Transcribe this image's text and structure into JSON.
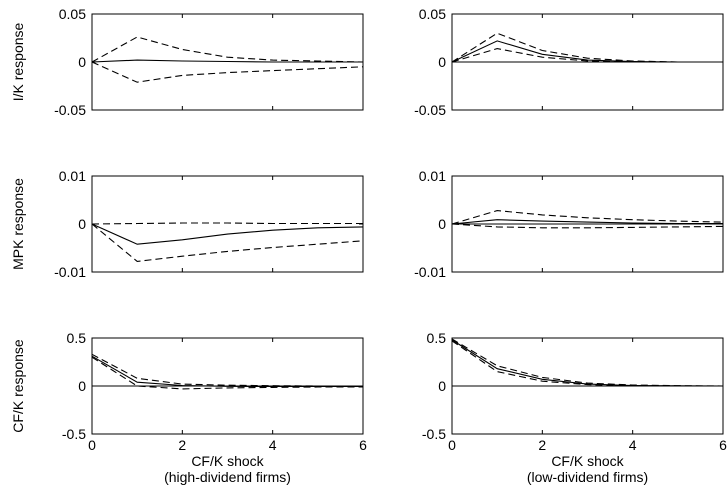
{
  "chart_data": [
    {
      "type": "line",
      "ylabel": "I/K response",
      "xlabel": "",
      "xlabel2": "",
      "xlim": [
        0,
        6
      ],
      "ylim": [
        -0.05,
        0.05
      ],
      "y_ticks": [
        "0.05",
        "0",
        "-0.05"
      ],
      "x_ticks": [],
      "zero_line": false,
      "series": [
        {
          "style": "solid",
          "x": [
            0,
            1,
            2,
            3,
            4,
            5,
            6
          ],
          "y": [
            0,
            0.002,
            0.001,
            0.0005,
            0,
            0,
            0
          ]
        },
        {
          "style": "dashed",
          "x": [
            0,
            1,
            2,
            3,
            4,
            5,
            6
          ],
          "y": [
            0,
            0.026,
            0.013,
            0.005,
            0.002,
            0.001,
            0
          ]
        },
        {
          "style": "dashed",
          "x": [
            0,
            1,
            2,
            3,
            4,
            5,
            6
          ],
          "y": [
            0,
            -0.021,
            -0.014,
            -0.011,
            -0.009,
            -0.007,
            -0.005
          ]
        }
      ]
    },
    {
      "type": "line",
      "ylabel": "",
      "xlabel": "",
      "xlabel2": "",
      "xlim": [
        0,
        6
      ],
      "ylim": [
        -0.05,
        0.05
      ],
      "y_ticks": [
        "0.05",
        "0",
        "-0.05"
      ],
      "x_ticks": [],
      "zero_line": true,
      "series": [
        {
          "style": "solid",
          "x": [
            0,
            1,
            2,
            3,
            4,
            5,
            6
          ],
          "y": [
            0,
            0.022,
            0.008,
            0.002,
            0.0005,
            0,
            0
          ]
        },
        {
          "style": "dashed",
          "x": [
            0,
            1,
            2,
            3,
            4,
            5,
            6
          ],
          "y": [
            0,
            0.03,
            0.012,
            0.004,
            0.001,
            0,
            0
          ]
        },
        {
          "style": "dashed",
          "x": [
            0,
            1,
            2,
            3,
            4,
            5,
            6
          ],
          "y": [
            0,
            0.014,
            0.005,
            0.001,
            0,
            0,
            0
          ]
        }
      ]
    },
    {
      "type": "line",
      "ylabel": "MPK response",
      "xlabel": "",
      "xlabel2": "",
      "xlim": [
        0,
        6
      ],
      "ylim": [
        -0.01,
        0.01
      ],
      "y_ticks": [
        "0.01",
        "0",
        "-0.01"
      ],
      "x_ticks": [],
      "zero_line": false,
      "series": [
        {
          "style": "solid",
          "x": [
            0,
            1,
            2,
            3,
            4,
            5,
            6
          ],
          "y": [
            0,
            -0.0042,
            -0.0033,
            -0.0021,
            -0.0013,
            -0.0008,
            -0.0006
          ]
        },
        {
          "style": "dashed",
          "x": [
            0,
            1,
            2,
            3,
            4,
            5,
            6
          ],
          "y": [
            0,
            -0.0078,
            -0.0067,
            -0.0057,
            -0.0049,
            -0.0042,
            -0.0035
          ]
        },
        {
          "style": "dashed",
          "x": [
            0,
            1,
            2,
            3,
            4,
            5,
            6
          ],
          "y": [
            0,
            0.0001,
            0.0002,
            0.0002,
            0.0001,
            0.0001,
            0.0001
          ]
        }
      ]
    },
    {
      "type": "line",
      "ylabel": "",
      "xlabel": "",
      "xlabel2": "",
      "xlim": [
        0,
        6
      ],
      "ylim": [
        -0.01,
        0.01
      ],
      "y_ticks": [
        "0.01",
        "0",
        "-0.01"
      ],
      "x_ticks": [],
      "zero_line": true,
      "series": [
        {
          "style": "solid",
          "x": [
            0,
            1,
            2,
            3,
            4,
            5,
            6
          ],
          "y": [
            0,
            0.0009,
            0.0006,
            0.0004,
            0.0002,
            0.0001,
            0.0001
          ]
        },
        {
          "style": "dashed",
          "x": [
            0,
            1,
            2,
            3,
            4,
            5,
            6
          ],
          "y": [
            0,
            0.0028,
            0.0019,
            0.0013,
            0.0009,
            0.0006,
            0.0004
          ]
        },
        {
          "style": "dashed",
          "x": [
            0,
            1,
            2,
            3,
            4,
            5,
            6
          ],
          "y": [
            0,
            -0.0006,
            -0.0008,
            -0.0008,
            -0.0007,
            -0.0006,
            -0.0005
          ]
        }
      ]
    },
    {
      "type": "line",
      "ylabel": "CF/K response",
      "xlabel": "CF/K shock",
      "xlabel2": "(high-dividend firms)",
      "xlim": [
        0,
        6
      ],
      "ylim": [
        -0.5,
        0.5
      ],
      "y_ticks": [
        "0.5",
        "0",
        "-0.5"
      ],
      "x_ticks": [
        "0",
        "2",
        "4",
        "6"
      ],
      "zero_line": true,
      "series": [
        {
          "style": "solid",
          "x": [
            0,
            1,
            2,
            3,
            4,
            5,
            6
          ],
          "y": [
            0.31,
            0.04,
            0.005,
            -0.003,
            -0.005,
            -0.005,
            -0.005
          ]
        },
        {
          "style": "dashed",
          "x": [
            0,
            1,
            2,
            3,
            4,
            5,
            6
          ],
          "y": [
            0.33,
            0.08,
            0.02,
            0.008,
            0.003,
            0,
            0
          ]
        },
        {
          "style": "dashed",
          "x": [
            0,
            1,
            2,
            3,
            4,
            5,
            6
          ],
          "y": [
            0.3,
            0.0,
            -0.03,
            -0.02,
            -0.015,
            -0.01,
            -0.01
          ]
        }
      ]
    },
    {
      "type": "line",
      "ylabel": "",
      "xlabel": "CF/K shock",
      "xlabel2": "(low-dividend firms)",
      "xlim": [
        0,
        6
      ],
      "ylim": [
        -0.5,
        0.5
      ],
      "y_ticks": [
        "0.5",
        "0",
        "-0.5"
      ],
      "x_ticks": [
        "0",
        "2",
        "4",
        "6"
      ],
      "zero_line": true,
      "series": [
        {
          "style": "solid",
          "x": [
            0,
            1,
            2,
            3,
            4,
            5,
            6
          ],
          "y": [
            0.48,
            0.18,
            0.07,
            0.02,
            0.005,
            0.002,
            0
          ]
        },
        {
          "style": "dashed",
          "x": [
            0,
            1,
            2,
            3,
            4,
            5,
            6
          ],
          "y": [
            0.49,
            0.21,
            0.09,
            0.03,
            0.01,
            0.003,
            0
          ]
        },
        {
          "style": "dashed",
          "x": [
            0,
            1,
            2,
            3,
            4,
            5,
            6
          ],
          "y": [
            0.47,
            0.15,
            0.05,
            0.015,
            0.003,
            0,
            0
          ]
        }
      ]
    }
  ]
}
